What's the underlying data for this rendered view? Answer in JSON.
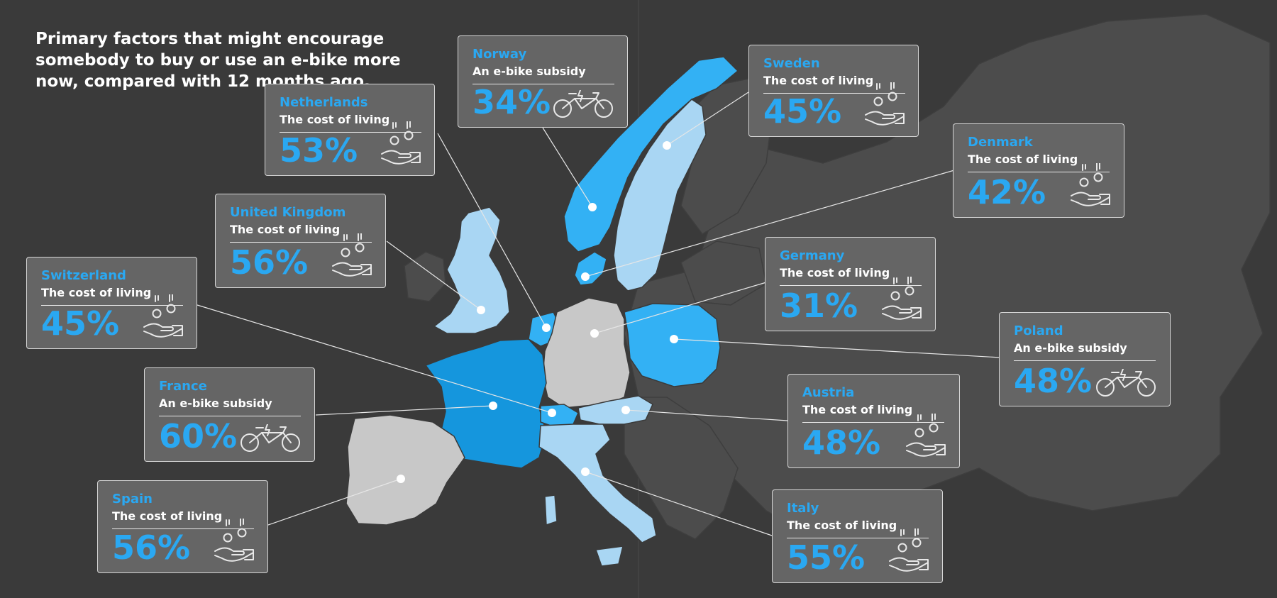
{
  "headline": "Primary factors that might encourage somebody to buy or use an e-bike more now, compared with 12 months ago.",
  "colors": {
    "background": "#3a3a3a",
    "land_other": "#4d4d4d",
    "grey_country": "#c8c8c8",
    "light_blue": "#a9d6f3",
    "mid_blue": "#33b1f4",
    "dark_blue": "#1596dd",
    "accent_text": "#2aa8f2"
  },
  "countries": [
    {
      "id": "norway",
      "country": "Norway",
      "factor": "An e-bike subsidy",
      "value": "34%",
      "icon": "bicycle-icon"
    },
    {
      "id": "sweden",
      "country": "Sweden",
      "factor": "The cost of living",
      "value": "45%",
      "icon": "coins-hand-icon"
    },
    {
      "id": "netherlands",
      "country": "Netherlands",
      "factor": "The cost of living",
      "value": "53%",
      "icon": "coins-hand-icon"
    },
    {
      "id": "denmark",
      "country": "Denmark",
      "factor": "The cost of living",
      "value": "42%",
      "icon": "coins-hand-icon"
    },
    {
      "id": "uk",
      "country": "United Kingdom",
      "factor": "The cost of living",
      "value": "56%",
      "icon": "coins-hand-icon"
    },
    {
      "id": "germany",
      "country": "Germany",
      "factor": "The cost of living",
      "value": "31%",
      "icon": "coins-hand-icon"
    },
    {
      "id": "switzerland",
      "country": "Switzerland",
      "factor": "The cost of living",
      "value": "45%",
      "icon": "coins-hand-icon"
    },
    {
      "id": "poland",
      "country": "Poland",
      "factor": "An e-bike subsidy",
      "value": "48%",
      "icon": "bicycle-icon"
    },
    {
      "id": "france",
      "country": "France",
      "factor": "An e-bike subsidy",
      "value": "60%",
      "icon": "bicycle-icon"
    },
    {
      "id": "austria",
      "country": "Austria",
      "factor": "The cost of living",
      "value": "48%",
      "icon": "coins-hand-icon"
    },
    {
      "id": "spain",
      "country": "Spain",
      "factor": "The cost of living",
      "value": "56%",
      "icon": "coins-hand-icon"
    },
    {
      "id": "italy",
      "country": "Italy",
      "factor": "The cost of living",
      "value": "55%",
      "icon": "coins-hand-icon"
    }
  ]
}
